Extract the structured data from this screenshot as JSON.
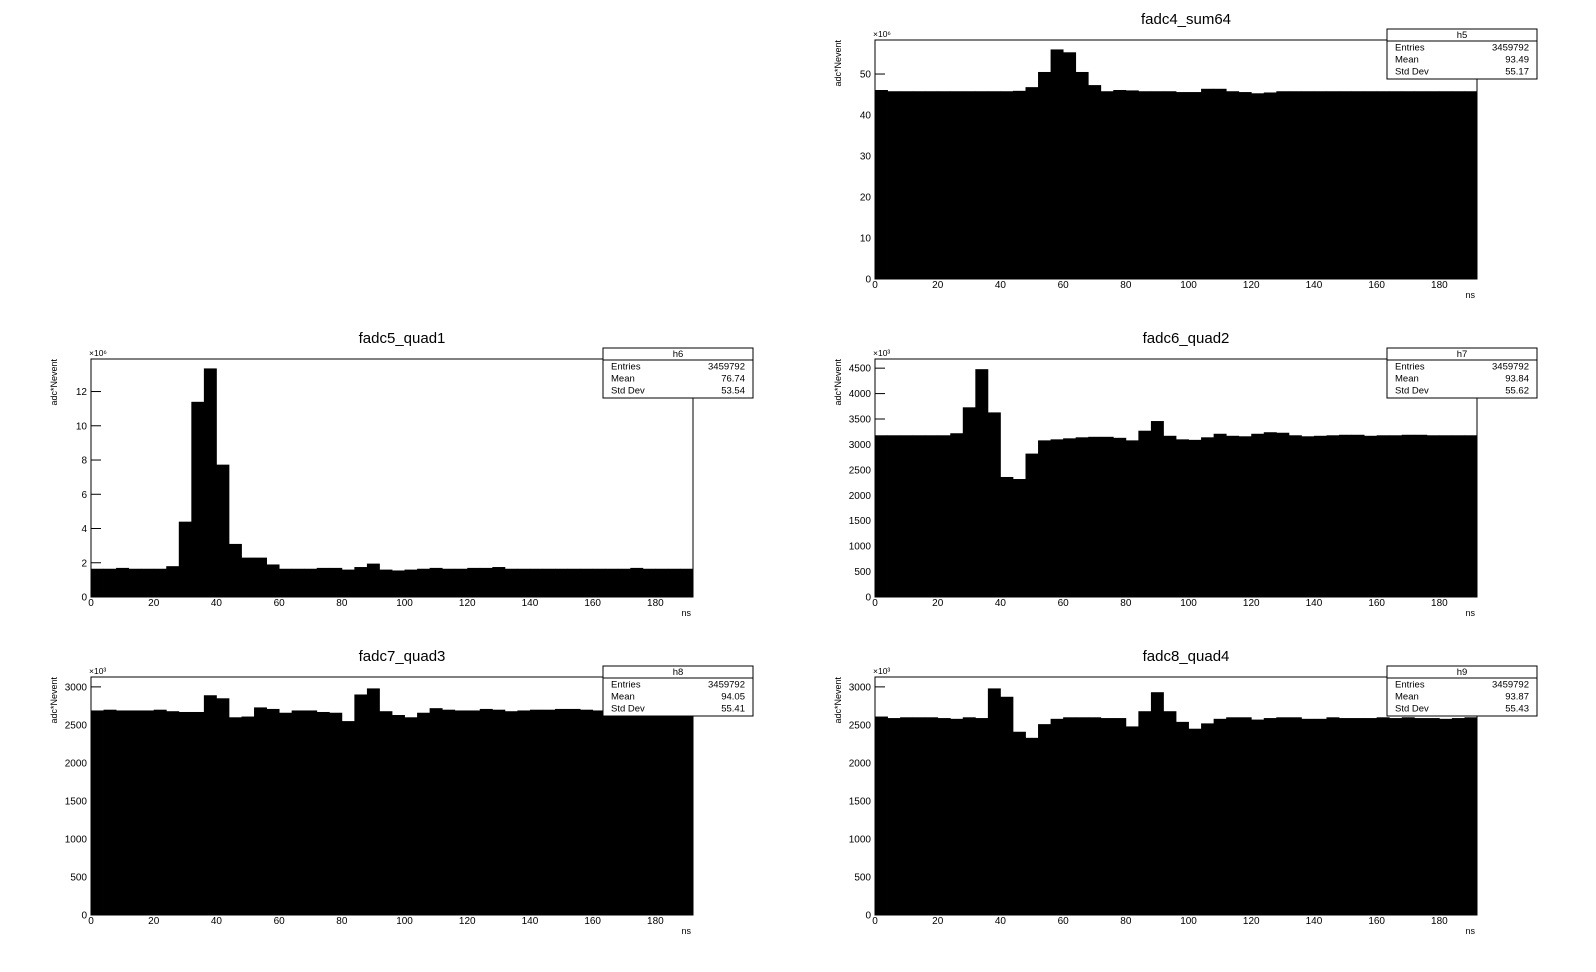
{
  "chart_data": [
    {
      "type": "histogram",
      "title": "fadc4_sum64",
      "xlabel": "ns",
      "ylabel": "adc*Nevent",
      "y_multiplier": "×10⁶",
      "color": "#000000",
      "bins": [
        0,
        4,
        8,
        12,
        16,
        20,
        24,
        28,
        32,
        36,
        40,
        44,
        48,
        52,
        56,
        60,
        64,
        68,
        72,
        76,
        80,
        84,
        88,
        92,
        96,
        100,
        104,
        108,
        112,
        116,
        120,
        124,
        128,
        132,
        136,
        140,
        144,
        148,
        152,
        156,
        160,
        164,
        168,
        172,
        176,
        180,
        184,
        188,
        192
      ],
      "values": [
        46.1,
        45.8,
        45.8,
        45.8,
        45.8,
        45.8,
        45.8,
        45.8,
        45.8,
        45.8,
        45.8,
        45.9,
        46.8,
        50.5,
        56.0,
        55.3,
        50.5,
        47.3,
        45.8,
        46.1,
        46.0,
        45.8,
        45.8,
        45.8,
        45.6,
        45.6,
        46.4,
        46.4,
        45.8,
        45.6,
        45.3,
        45.5,
        45.8,
        45.8,
        45.8,
        45.8,
        45.8,
        45.8,
        45.8,
        45.8,
        45.8,
        45.8,
        45.8,
        45.8,
        45.8,
        45.8,
        45.8,
        45.8
      ],
      "xlim": [
        0,
        192
      ],
      "xticks": [
        0,
        20,
        40,
        60,
        80,
        100,
        120,
        140,
        160,
        180
      ],
      "ylim": [
        0,
        58.3
      ],
      "yticks": [
        0,
        10,
        20,
        30,
        40,
        50
      ],
      "stats": {
        "name": "h5",
        "rows": [
          {
            "label": "Entries",
            "value": 3459792
          },
          {
            "label": "Mean",
            "value": 93.49
          },
          {
            "label": "Std Dev",
            "value": 55.17
          }
        ]
      }
    },
    {
      "type": "histogram",
      "title": "fadc5_quad1",
      "xlabel": "ns",
      "ylabel": "adc*Nevent",
      "y_multiplier": "×10⁶",
      "color": "#000000",
      "bins": [
        0,
        4,
        8,
        12,
        16,
        20,
        24,
        28,
        32,
        36,
        40,
        44,
        48,
        52,
        56,
        60,
        64,
        68,
        72,
        76,
        80,
        84,
        88,
        92,
        96,
        100,
        104,
        108,
        112,
        116,
        120,
        124,
        128,
        132,
        136,
        140,
        144,
        148,
        152,
        156,
        160,
        164,
        168,
        172,
        176,
        180,
        184,
        188,
        192
      ],
      "values": [
        1.65,
        1.65,
        1.7,
        1.65,
        1.65,
        1.65,
        1.8,
        4.4,
        11.4,
        13.35,
        7.73,
        3.1,
        2.3,
        2.3,
        1.9,
        1.65,
        1.65,
        1.65,
        1.7,
        1.7,
        1.6,
        1.75,
        1.95,
        1.6,
        1.55,
        1.6,
        1.65,
        1.7,
        1.65,
        1.65,
        1.7,
        1.7,
        1.75,
        1.65,
        1.65,
        1.65,
        1.65,
        1.65,
        1.65,
        1.65,
        1.65,
        1.65,
        1.65,
        1.7,
        1.65,
        1.65,
        1.65,
        1.65
      ],
      "xlim": [
        0,
        192
      ],
      "xticks": [
        0,
        20,
        40,
        60,
        80,
        100,
        120,
        140,
        160,
        180
      ],
      "ylim": [
        0,
        13.9
      ],
      "yticks": [
        0,
        2,
        4,
        6,
        8,
        10,
        12
      ],
      "stats": {
        "name": "h6",
        "rows": [
          {
            "label": "Entries",
            "value": 3459792
          },
          {
            "label": "Mean",
            "value": 76.74
          },
          {
            "label": "Std Dev",
            "value": 53.54
          }
        ]
      }
    },
    {
      "type": "histogram",
      "title": "fadc6_quad2",
      "xlabel": "ns",
      "ylabel": "adc*Nevent",
      "y_multiplier": "×10³",
      "color": "#000000",
      "bins": [
        0,
        4,
        8,
        12,
        16,
        20,
        24,
        28,
        32,
        36,
        40,
        44,
        48,
        52,
        56,
        60,
        64,
        68,
        72,
        76,
        80,
        84,
        88,
        92,
        96,
        100,
        104,
        108,
        112,
        116,
        120,
        124,
        128,
        132,
        136,
        140,
        144,
        148,
        152,
        156,
        160,
        164,
        168,
        172,
        176,
        180,
        184,
        188,
        192
      ],
      "values": [
        3180,
        3180,
        3180,
        3180,
        3180,
        3180,
        3220,
        3730,
        4480,
        3630,
        2360,
        2320,
        2820,
        3080,
        3100,
        3120,
        3140,
        3150,
        3150,
        3130,
        3080,
        3270,
        3460,
        3170,
        3100,
        3090,
        3140,
        3210,
        3170,
        3160,
        3210,
        3240,
        3230,
        3180,
        3160,
        3170,
        3180,
        3190,
        3190,
        3170,
        3180,
        3180,
        3190,
        3190,
        3180,
        3180,
        3180,
        3180
      ],
      "xlim": [
        0,
        192
      ],
      "xticks": [
        0,
        20,
        40,
        60,
        80,
        100,
        120,
        140,
        160,
        180
      ],
      "ylim": [
        0,
        4680
      ],
      "yticks": [
        0,
        500,
        1000,
        1500,
        2000,
        2500,
        3000,
        3500,
        4000,
        4500
      ],
      "stats": {
        "name": "h7",
        "rows": [
          {
            "label": "Entries",
            "value": 3459792
          },
          {
            "label": "Mean",
            "value": 93.84
          },
          {
            "label": "Std Dev",
            "value": 55.62
          }
        ]
      }
    },
    {
      "type": "histogram",
      "title": "fadc7_quad3",
      "xlabel": "ns",
      "ylabel": "adc*Nevent",
      "y_multiplier": "×10³",
      "color": "#000000",
      "bins": [
        0,
        4,
        8,
        12,
        16,
        20,
        24,
        28,
        32,
        36,
        40,
        44,
        48,
        52,
        56,
        60,
        64,
        68,
        72,
        76,
        80,
        84,
        88,
        92,
        96,
        100,
        104,
        108,
        112,
        116,
        120,
        124,
        128,
        132,
        136,
        140,
        144,
        148,
        152,
        156,
        160,
        164,
        168,
        172,
        176,
        180,
        184,
        188,
        192
      ],
      "values": [
        2690,
        2700,
        2690,
        2690,
        2690,
        2700,
        2680,
        2670,
        2670,
        2890,
        2850,
        2600,
        2610,
        2730,
        2710,
        2660,
        2690,
        2690,
        2670,
        2660,
        2550,
        2900,
        2980,
        2680,
        2630,
        2600,
        2660,
        2720,
        2700,
        2690,
        2690,
        2710,
        2700,
        2680,
        2690,
        2700,
        2700,
        2710,
        2710,
        2700,
        2690,
        2680,
        2690,
        2690,
        2690,
        2690,
        2690,
        2690
      ],
      "xlim": [
        0,
        192
      ],
      "xticks": [
        0,
        20,
        40,
        60,
        80,
        100,
        120,
        140,
        160,
        180
      ],
      "ylim": [
        0,
        3130
      ],
      "yticks": [
        0,
        500,
        1000,
        1500,
        2000,
        2500,
        3000
      ],
      "stats": {
        "name": "h8",
        "rows": [
          {
            "label": "Entries",
            "value": 3459792
          },
          {
            "label": "Mean",
            "value": 94.05
          },
          {
            "label": "Std Dev",
            "value": 55.41
          }
        ]
      }
    },
    {
      "type": "histogram",
      "title": "fadc8_quad4",
      "xlabel": "ns",
      "ylabel": "adc*Nevent",
      "y_multiplier": "×10³",
      "color": "#000000",
      "bins": [
        0,
        4,
        8,
        12,
        16,
        20,
        24,
        28,
        32,
        36,
        40,
        44,
        48,
        52,
        56,
        60,
        64,
        68,
        72,
        76,
        80,
        84,
        88,
        92,
        96,
        100,
        104,
        108,
        112,
        116,
        120,
        124,
        128,
        132,
        136,
        140,
        144,
        148,
        152,
        156,
        160,
        164,
        168,
        172,
        176,
        180,
        184,
        188,
        192
      ],
      "values": [
        2610,
        2590,
        2600,
        2600,
        2600,
        2590,
        2580,
        2600,
        2590,
        2980,
        2870,
        2410,
        2330,
        2510,
        2580,
        2600,
        2600,
        2600,
        2590,
        2590,
        2480,
        2680,
        2930,
        2680,
        2540,
        2450,
        2520,
        2580,
        2600,
        2600,
        2570,
        2590,
        2600,
        2600,
        2580,
        2580,
        2600,
        2590,
        2590,
        2590,
        2600,
        2590,
        2600,
        2590,
        2590,
        2580,
        2590,
        2600
      ],
      "xlim": [
        0,
        192
      ],
      "xticks": [
        0,
        20,
        40,
        60,
        80,
        100,
        120,
        140,
        160,
        180
      ],
      "ylim": [
        0,
        3130
      ],
      "yticks": [
        0,
        500,
        1000,
        1500,
        2000,
        2500,
        3000
      ],
      "stats": {
        "name": "h9",
        "rows": [
          {
            "label": "Entries",
            "value": 3459792
          },
          {
            "label": "Mean",
            "value": 93.87
          },
          {
            "label": "Std Dev",
            "value": 55.43
          }
        ]
      }
    }
  ]
}
